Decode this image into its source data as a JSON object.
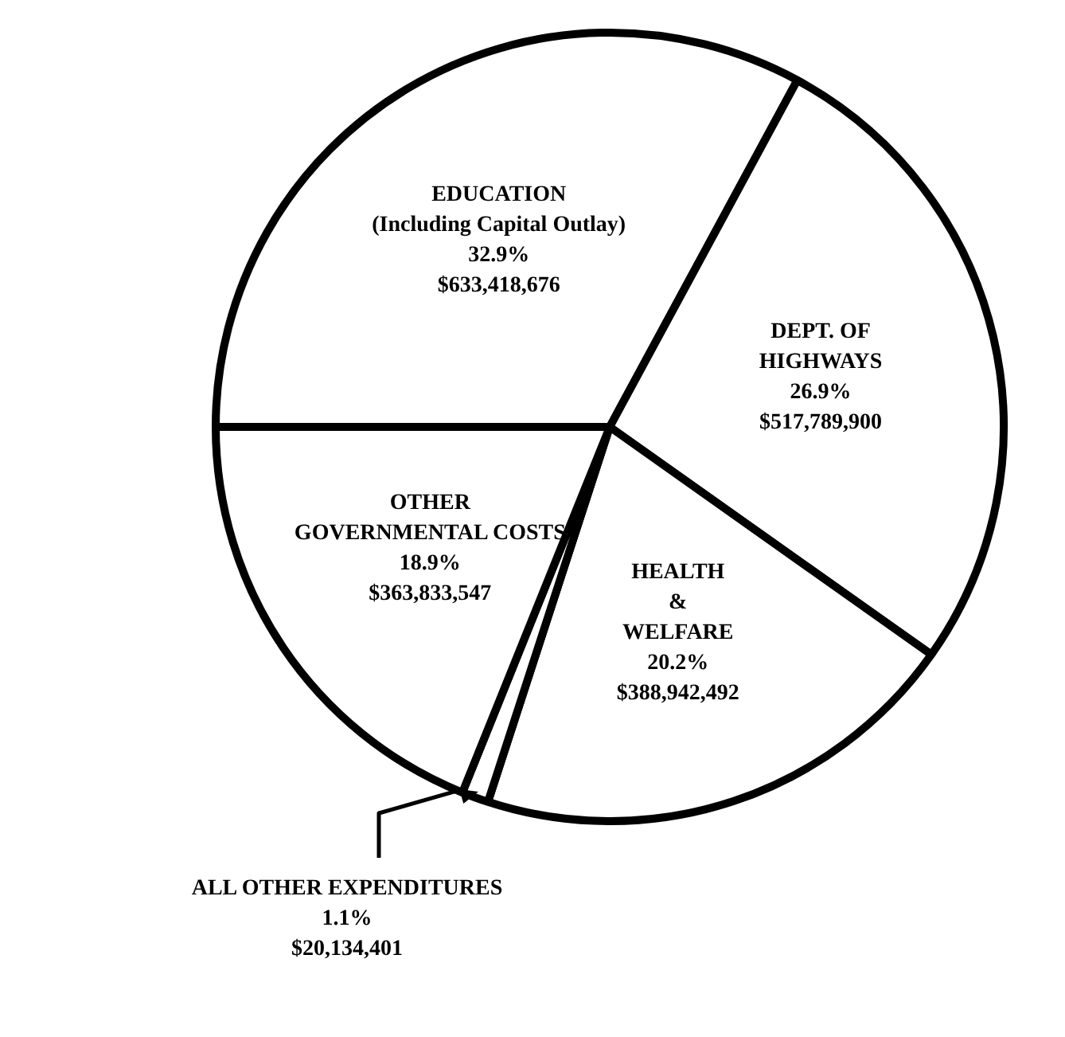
{
  "chart_data": {
    "type": "pie",
    "categories": [
      "EDUCATION\n(Including Capital Outlay)",
      "DEPT. OF\nHIGHWAYS",
      "HEALTH\n&\nWELFARE",
      "ALL OTHER EXPENDITURES",
      "OTHER\nGOVERNMENTAL COSTS"
    ],
    "values": [
      32.9,
      26.9,
      20.2,
      1.1,
      18.9
    ],
    "value_labels": [
      "32.9%\n$633,418,676",
      "26.9%\n$517,789,900",
      "20.2%\n$388,942,492",
      "1.1%\n$20,134,401",
      "18.9%\n$363,833,547"
    ],
    "colors": [
      "#ffffff",
      "#ffffff",
      "#ffffff",
      "#ffffff",
      "#ffffff"
    ],
    "legend": false
  }
}
